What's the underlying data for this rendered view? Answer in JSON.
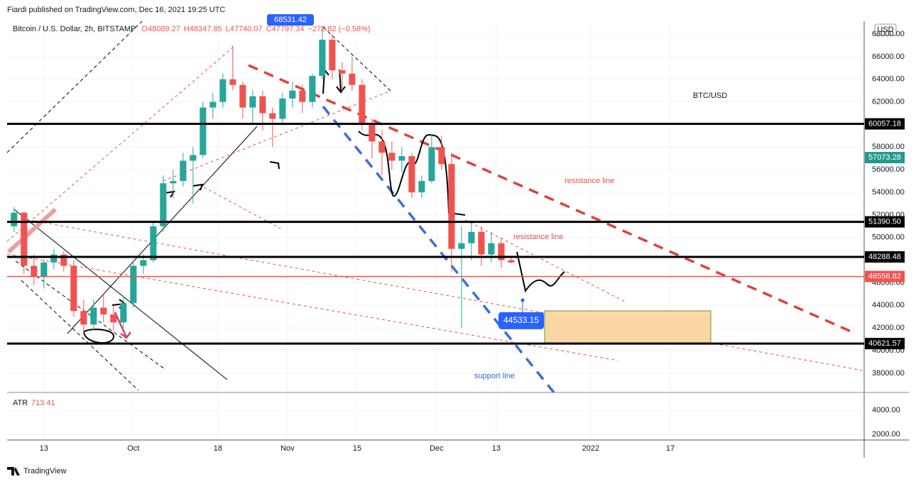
{
  "header": {
    "publisher": "Fiardi published on TradingView.com, Dec 16, 2021 19:25 UTC",
    "footer": "TradingView"
  },
  "chart_data": {
    "type": "candlestick",
    "title": "BTC/USD",
    "symbol": "Bitcoin / U.S. Dollar, 2h, BITSTAMP",
    "ohlc_text": [
      "O48089.27",
      "H48347.85",
      "L47740.07",
      "C47797.34",
      "−278.82 (−0.58%)"
    ],
    "currency": "USD",
    "x": [
      6,
      8,
      10,
      12,
      14,
      16,
      18,
      20,
      22,
      24,
      26,
      28,
      30,
      32,
      34,
      36,
      38,
      40,
      42,
      44,
      46,
      48,
      50,
      52,
      54,
      56,
      58,
      60,
      62,
      64,
      66,
      68,
      70,
      72,
      74,
      76,
      78,
      80,
      82,
      84,
      86,
      88,
      90,
      92,
      94,
      96,
      98,
      100,
      102,
      104,
      106
    ],
    "open": [
      51000,
      52200,
      47500,
      46500,
      47800,
      48500,
      47500,
      43500,
      42300,
      43800,
      43200,
      42500,
      44200,
      47500,
      48000,
      51000,
      54800,
      55000,
      56800,
      57300,
      61500,
      62000,
      64000,
      63500,
      61500,
      62500,
      61000,
      60500,
      62300,
      63000,
      62000,
      64300,
      67500,
      64800,
      64500,
      63500,
      60000,
      58500,
      57500,
      56800,
      57200,
      54000,
      55000,
      58000,
      56500,
      49000,
      49500,
      50500,
      48500,
      49500,
      48000
    ],
    "high": [
      52700,
      52300,
      48500,
      48000,
      49000,
      48800,
      48000,
      44500,
      44500,
      45000,
      44000,
      44800,
      48000,
      48500,
      51500,
      55500,
      56000,
      57500,
      58000,
      62000,
      62800,
      64500,
      67000,
      63800,
      63000,
      63000,
      61500,
      62800,
      63800,
      63500,
      64500,
      68500,
      68000,
      65500,
      66000,
      64000,
      60500,
      59500,
      58500,
      58000,
      57500,
      55500,
      59200,
      59000,
      57500,
      51000,
      51500,
      51000,
      50500,
      50000,
      48400
    ],
    "low": [
      50500,
      46800,
      45800,
      45500,
      47200,
      47000,
      43000,
      41500,
      41800,
      42500,
      41700,
      42000,
      43800,
      46800,
      47800,
      50500,
      53500,
      54500,
      53000,
      57000,
      60500,
      61500,
      63000,
      60500,
      60000,
      59500,
      58000,
      60000,
      61500,
      61000,
      61500,
      64000,
      64000,
      62800,
      63000,
      59500,
      57000,
      55500,
      56000,
      55800,
      53500,
      53500,
      54800,
      56000,
      47000,
      42000,
      48000,
      47500,
      47800,
      47300,
      47700
    ],
    "close": [
      52200,
      47500,
      46500,
      47800,
      48500,
      47500,
      43500,
      42300,
      43800,
      43200,
      42500,
      44200,
      47500,
      48000,
      51000,
      54800,
      55000,
      56800,
      57300,
      61500,
      62000,
      64000,
      63500,
      61500,
      62500,
      61000,
      60500,
      62300,
      63000,
      62000,
      64300,
      67500,
      64800,
      64500,
      63500,
      60000,
      58500,
      57500,
      56800,
      57200,
      54000,
      55000,
      58000,
      56500,
      49000,
      49500,
      50500,
      48500,
      49500,
      48000,
      47800
    ],
    "up_color": "#26a69a",
    "down_color": "#ef5350",
    "xlim": [
      4.6,
      177
    ],
    "xticks": [
      {
        "value": 12,
        "label": "13"
      },
      {
        "value": 30,
        "label": "Oct"
      },
      {
        "value": 47,
        "label": "18"
      },
      {
        "value": 61,
        "label": "Nov"
      },
      {
        "value": 75,
        "label": "15"
      },
      {
        "value": 91,
        "label": "Dec"
      },
      {
        "value": 103,
        "label": "13"
      },
      {
        "value": 122,
        "label": "2022"
      },
      {
        "value": 138,
        "label": "17"
      }
    ],
    "ylim": [
      36300,
      69130
    ],
    "yticks": [
      {
        "value": 38000,
        "label": "38000.00"
      },
      {
        "value": 40000,
        "label": "40000.00"
      },
      {
        "value": 42000,
        "label": "42000.00"
      },
      {
        "value": 44000,
        "label": "44000.00"
      },
      {
        "value": 46000,
        "label": "46000.00"
      },
      {
        "value": 48000,
        "label": "48000.00"
      },
      {
        "value": 50000,
        "label": "50000.00"
      },
      {
        "value": 52000,
        "label": "52000.00"
      },
      {
        "value": 54000,
        "label": "54000.00"
      },
      {
        "value": 56000,
        "label": "56000.00"
      },
      {
        "value": 58000,
        "label": "58000.00"
      },
      {
        "value": 60000,
        "label": "60000.00"
      },
      {
        "value": 62000,
        "label": "62000.00"
      },
      {
        "value": 64000,
        "label": "64000.00"
      },
      {
        "value": 66000,
        "label": "66000.00"
      },
      {
        "value": 68000,
        "label": "68000.00"
      }
    ],
    "grid": true,
    "levels": [
      {
        "value": 60057.18,
        "label": "60057.18",
        "color": "#000000",
        "line": true
      },
      {
        "value": 57073.28,
        "label": "57073.28",
        "color": "#22998a",
        "line": false
      },
      {
        "value": 51390.5,
        "label": "51390.50",
        "color": "#000000",
        "line": true
      },
      {
        "value": 48288.48,
        "label": "48288.48",
        "color": "#000000",
        "line": true
      },
      {
        "value": 46556.82,
        "label": "46556.82",
        "color": "#ef5350",
        "line": true
      },
      {
        "value": 40621.57,
        "label": "40621.57",
        "color": "#000000",
        "line": true
      }
    ],
    "marker": {
      "value": 44533.15,
      "label": "44533.15"
    },
    "high_marker": "68531.42",
    "annotations": [
      "resistance line",
      "resistance line",
      "support line"
    ],
    "atr": {
      "label": "ATR",
      "value": 713.41,
      "ylim": [
        1530,
        5470
      ],
      "yticks": [
        {
          "value": 4000,
          "label": "4000.00"
        },
        {
          "value": 2000,
          "label": "2000.00"
        }
      ]
    }
  }
}
